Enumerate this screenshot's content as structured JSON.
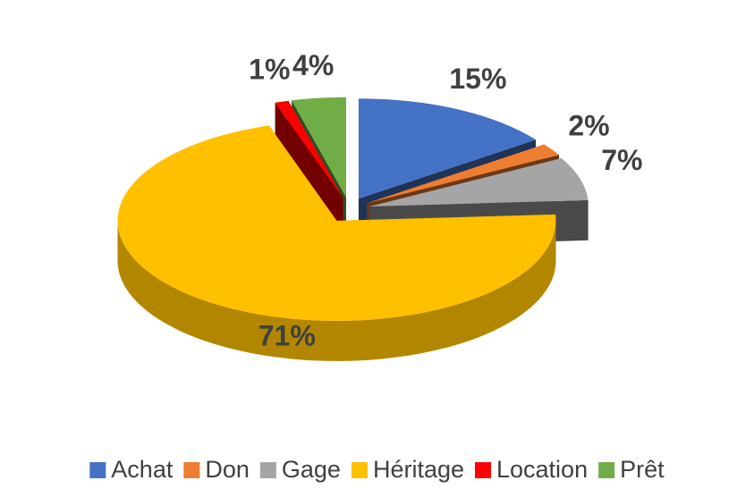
{
  "chart_data": {
    "type": "pie",
    "categories": [
      "Achat",
      "Don",
      "Gage",
      "Héritage",
      "Location",
      "Prêt"
    ],
    "values": [
      15,
      2,
      7,
      71,
      1,
      4
    ],
    "value_labels": [
      "15%",
      "2%",
      "7%",
      "71%",
      "1%",
      "4%"
    ],
    "colors": [
      "#4472c4",
      "#ed7d31",
      "#a5a5a5",
      "#ffc000",
      "#ff0000",
      "#70ad47"
    ],
    "legend": "bottom"
  }
}
